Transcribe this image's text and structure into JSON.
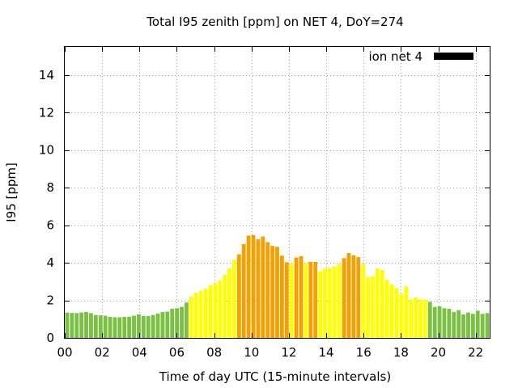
{
  "chart_data": {
    "type": "bar",
    "title": "Total I95 zenith [ppm] on NET 4, DoY=274",
    "xlabel": "Time of day UTC (15-minute intervals)",
    "ylabel": "I95 [ppm]",
    "legend": {
      "label": "ion net 4",
      "position": "top-right",
      "color": "#000000"
    },
    "grid": true,
    "xlim": [
      0,
      22.75
    ],
    "ylim": [
      0,
      15.5
    ],
    "x_ticks": [
      {
        "value": 0,
        "label": "00"
      },
      {
        "value": 2,
        "label": "02"
      },
      {
        "value": 4,
        "label": "04"
      },
      {
        "value": 6,
        "label": "06"
      },
      {
        "value": 8,
        "label": "08"
      },
      {
        "value": 10,
        "label": "10"
      },
      {
        "value": 12,
        "label": "12"
      },
      {
        "value": 14,
        "label": "14"
      },
      {
        "value": 16,
        "label": "16"
      },
      {
        "value": 18,
        "label": "18"
      },
      {
        "value": 20,
        "label": "20"
      },
      {
        "value": 22,
        "label": "22"
      }
    ],
    "y_ticks": [
      {
        "value": 0,
        "label": "0"
      },
      {
        "value": 2,
        "label": "2"
      },
      {
        "value": 4,
        "label": "4"
      },
      {
        "value": 6,
        "label": "6"
      },
      {
        "value": 8,
        "label": "8"
      },
      {
        "value": 10,
        "label": "10"
      },
      {
        "value": 12,
        "label": "12"
      },
      {
        "value": 14,
        "label": "14"
      }
    ],
    "colors": {
      "green": "#7ac143",
      "yellow": "#ffff00",
      "orange": "#f5a000"
    },
    "values": [
      1.35,
      1.33,
      1.32,
      1.35,
      1.38,
      1.32,
      1.22,
      1.2,
      1.18,
      1.12,
      1.1,
      1.1,
      1.12,
      1.13,
      1.18,
      1.25,
      1.17,
      1.16,
      1.22,
      1.3,
      1.38,
      1.4,
      1.55,
      1.58,
      1.65,
      1.88,
      2.2,
      2.4,
      2.5,
      2.62,
      2.8,
      2.9,
      3.05,
      3.35,
      3.7,
      4.15,
      4.45,
      5.0,
      5.45,
      5.48,
      5.25,
      5.4,
      5.1,
      4.9,
      4.85,
      4.38,
      4.03,
      3.95,
      4.28,
      4.35,
      3.98,
      4.05,
      4.05,
      3.55,
      3.7,
      3.72,
      3.8,
      3.92,
      4.25,
      4.52,
      4.4,
      4.3,
      3.92,
      3.25,
      3.28,
      3.7,
      3.62,
      3.1,
      2.85,
      2.65,
      2.35,
      2.75,
      2.05,
      2.15,
      2.05,
      2.05,
      1.92,
      1.65,
      1.68,
      1.58,
      1.55,
      1.38,
      1.48,
      1.25,
      1.35,
      1.28,
      1.45,
      1.28,
      1.32
    ],
    "bar_colors": [
      "green",
      "green",
      "green",
      "green",
      "green",
      "green",
      "green",
      "green",
      "green",
      "green",
      "green",
      "green",
      "green",
      "green",
      "green",
      "green",
      "green",
      "green",
      "green",
      "green",
      "green",
      "green",
      "green",
      "green",
      "green",
      "green",
      "yellow",
      "yellow",
      "yellow",
      "yellow",
      "yellow",
      "yellow",
      "yellow",
      "yellow",
      "yellow",
      "yellow",
      "orange",
      "orange",
      "orange",
      "orange",
      "orange",
      "orange",
      "orange",
      "orange",
      "orange",
      "orange",
      "orange",
      "yellow",
      "orange",
      "orange",
      "yellow",
      "orange",
      "orange",
      "yellow",
      "yellow",
      "yellow",
      "yellow",
      "yellow",
      "orange",
      "orange",
      "orange",
      "orange",
      "yellow",
      "yellow",
      "yellow",
      "yellow",
      "yellow",
      "yellow",
      "yellow",
      "yellow",
      "yellow",
      "yellow",
      "yellow",
      "yellow",
      "yellow",
      "yellow",
      "green",
      "green",
      "green",
      "green",
      "green",
      "green",
      "green",
      "green",
      "green",
      "green",
      "green",
      "green",
      "green"
    ]
  }
}
